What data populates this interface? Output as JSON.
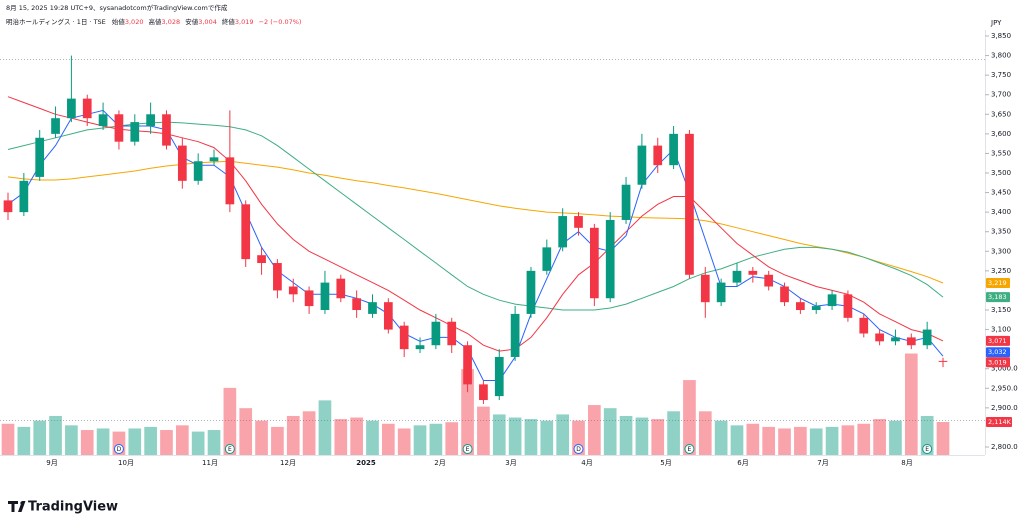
{
  "chart_data": {
    "type": "candlestick",
    "header": {
      "created": "8月 15, 2025 19:28 UTC+9、sysanadotcomがTradingView.comで作成",
      "symbol": "明治ホールディングス · 1日 · TSE",
      "open_label": "始値",
      "open": "3,020",
      "high_label": "高値",
      "high": "3,028",
      "low_label": "安値",
      "low": "3,004",
      "close_label": "終値",
      "close": "3,019",
      "change": "−2 (−0.07%)"
    },
    "currency": "JPY",
    "logo": "TradingView",
    "months": [
      "9月",
      "10月",
      "11月",
      "12月",
      "2025",
      "2月",
      "3月",
      "4月",
      "5月",
      "6月",
      "7月",
      "8月"
    ],
    "ylim": [
      2800,
      3850
    ],
    "yticks": [
      {
        "value": 3850,
        "label": "3,850"
      },
      {
        "value": 3800,
        "label": "3,800"
      },
      {
        "value": 3750,
        "label": "3,750"
      },
      {
        "value": 3700,
        "label": "3,700"
      },
      {
        "value": 3650,
        "label": "3,650"
      },
      {
        "value": 3600,
        "label": "3,600"
      },
      {
        "value": 3550,
        "label": "3,550"
      },
      {
        "value": 3500,
        "label": "3,500"
      },
      {
        "value": 3450,
        "label": "3,450"
      },
      {
        "value": 3400,
        "label": "3,400"
      },
      {
        "value": 3350,
        "label": "3,350"
      },
      {
        "value": 3300,
        "label": "3,300"
      },
      {
        "value": 3250,
        "label": "3,250"
      },
      {
        "value": 3150,
        "label": "3,150"
      },
      {
        "value": 3100,
        "label": "3,100"
      },
      {
        "value": 3000,
        "label": "3,000.0"
      },
      {
        "value": 2950,
        "label": "2,950.0"
      },
      {
        "value": 2900,
        "label": "2,900.0"
      },
      {
        "value": 2800,
        "label": "2,800.0"
      }
    ],
    "up_color": "#089981",
    "down_color": "#f23645",
    "open": [
      3430,
      3400,
      3490,
      3600,
      3640,
      3690,
      3620,
      3650,
      3580,
      3620,
      3650,
      3570,
      3480,
      3530,
      3540,
      3420,
      3290,
      3270,
      3210,
      3200,
      3150,
      3230,
      3180,
      3140,
      3170,
      3110,
      3050,
      3060,
      3120,
      3060,
      2960,
      2930,
      3030,
      3140,
      3250,
      3310,
      3390,
      3360,
      3180,
      3380,
      3470,
      3570,
      3520,
      3600,
      3240,
      3170,
      3220,
      3250,
      3240,
      3210,
      3170,
      3150,
      3160,
      3190,
      3130,
      3090,
      3070,
      3080,
      3060,
      3020
    ],
    "high": [
      3450,
      3500,
      3610,
      3670,
      3800,
      3700,
      3680,
      3660,
      3650,
      3680,
      3660,
      3590,
      3550,
      3560,
      3660,
      3430,
      3310,
      3280,
      3230,
      3210,
      3250,
      3240,
      3200,
      3190,
      3180,
      3120,
      3080,
      3140,
      3130,
      3070,
      2970,
      3050,
      3160,
      3260,
      3330,
      3410,
      3400,
      3370,
      3400,
      3490,
      3600,
      3590,
      3620,
      3610,
      3260,
      3230,
      3270,
      3260,
      3250,
      3220,
      3180,
      3170,
      3200,
      3200,
      3140,
      3100,
      3100,
      3090,
      3120,
      3028
    ],
    "low": [
      3380,
      3390,
      3480,
      3590,
      3630,
      3620,
      3610,
      3560,
      3570,
      3600,
      3560,
      3460,
      3470,
      3520,
      3400,
      3260,
      3240,
      3180,
      3170,
      3140,
      3140,
      3170,
      3130,
      3130,
      3090,
      3030,
      3040,
      3050,
      3040,
      2940,
      2910,
      2920,
      3020,
      3130,
      3240,
      3300,
      3340,
      3160,
      3170,
      3370,
      3460,
      3500,
      3510,
      3230,
      3130,
      3160,
      3210,
      3220,
      3200,
      3160,
      3140,
      3140,
      3150,
      3120,
      3080,
      3060,
      3060,
      3050,
      3050,
      3004
    ],
    "close": [
      3400,
      3480,
      3590,
      3640,
      3690,
      3640,
      3650,
      3580,
      3630,
      3650,
      3570,
      3480,
      3530,
      3540,
      3420,
      3280,
      3270,
      3200,
      3190,
      3160,
      3220,
      3180,
      3150,
      3170,
      3100,
      3050,
      3060,
      3120,
      3060,
      2960,
      2920,
      3030,
      3140,
      3250,
      3310,
      3390,
      3360,
      3180,
      3380,
      3470,
      3570,
      3520,
      3600,
      3240,
      3170,
      3220,
      3250,
      3240,
      3210,
      3170,
      3150,
      3160,
      3190,
      3130,
      3090,
      3070,
      3080,
      3060,
      3100,
      3019
    ],
    "last_close_label": "3,019",
    "volume": [
      2000,
      1800,
      2200,
      2500,
      1900,
      1600,
      1700,
      1500,
      1700,
      1800,
      1600,
      1900,
      1500,
      1600,
      4300,
      3000,
      2200,
      1800,
      2500,
      2800,
      3500,
      2300,
      2400,
      2200,
      2000,
      1700,
      1900,
      2000,
      2100,
      5500,
      3100,
      2600,
      2400,
      2300,
      2200,
      2600,
      2200,
      3200,
      3000,
      2500,
      2400,
      2300,
      2800,
      4800,
      2800,
      2200,
      1900,
      2000,
      1800,
      1700,
      1800,
      1700,
      1800,
      1900,
      2000,
      2300,
      2200,
      6500,
      2500,
      2114
    ],
    "last_volume_label": "2,114K",
    "series": [
      {
        "color": "#f7a600",
        "last_label": "3,219",
        "values": [
          3490,
          3485,
          3482,
          3482,
          3485,
          3490,
          3495,
          3500,
          3505,
          3512,
          3518,
          3522,
          3526,
          3528,
          3530,
          3525,
          3520,
          3515,
          3508,
          3500,
          3494,
          3487,
          3480,
          3475,
          3468,
          3462,
          3455,
          3448,
          3440,
          3432,
          3424,
          3416,
          3410,
          3405,
          3400,
          3398,
          3396,
          3393,
          3390,
          3388,
          3386,
          3385,
          3384,
          3383,
          3378,
          3370,
          3360,
          3350,
          3340,
          3330,
          3320,
          3312,
          3305,
          3295,
          3285,
          3272,
          3260,
          3248,
          3235,
          3219
        ]
      },
      {
        "color": "#3fae82",
        "last_label": "3,183",
        "values": [
          3560,
          3570,
          3580,
          3590,
          3600,
          3610,
          3615,
          3620,
          3625,
          3628,
          3630,
          3628,
          3625,
          3622,
          3618,
          3610,
          3595,
          3570,
          3540,
          3510,
          3480,
          3450,
          3420,
          3390,
          3360,
          3330,
          3300,
          3270,
          3240,
          3210,
          3190,
          3175,
          3165,
          3160,
          3155,
          3150,
          3150,
          3150,
          3155,
          3165,
          3180,
          3195,
          3210,
          3230,
          3245,
          3255,
          3270,
          3285,
          3295,
          3305,
          3310,
          3310,
          3305,
          3298,
          3285,
          3270,
          3255,
          3238,
          3215,
          3183
        ]
      },
      {
        "color": "#f23645",
        "last_label": "3,071",
        "values": [
          3695,
          3680,
          3665,
          3650,
          3640,
          3630,
          3620,
          3612,
          3608,
          3605,
          3600,
          3590,
          3580,
          3565,
          3530,
          3480,
          3420,
          3370,
          3330,
          3300,
          3280,
          3260,
          3240,
          3220,
          3200,
          3175,
          3150,
          3130,
          3110,
          3090,
          3060,
          3045,
          3050,
          3080,
          3130,
          3190,
          3240,
          3270,
          3310,
          3350,
          3390,
          3420,
          3440,
          3440,
          3400,
          3360,
          3320,
          3290,
          3260,
          3240,
          3225,
          3210,
          3200,
          3190,
          3170,
          3140,
          3120,
          3100,
          3090,
          3071
        ]
      },
      {
        "color": "#2962ff",
        "last_label": "3,032",
        "values": [
          3420,
          3450,
          3520,
          3570,
          3640,
          3650,
          3660,
          3620,
          3620,
          3620,
          3610,
          3540,
          3520,
          3520,
          3490,
          3400,
          3310,
          3250,
          3220,
          3190,
          3190,
          3190,
          3180,
          3165,
          3140,
          3090,
          3070,
          3080,
          3080,
          3050,
          2970,
          2970,
          3030,
          3140,
          3230,
          3320,
          3350,
          3310,
          3300,
          3340,
          3470,
          3520,
          3560,
          3450,
          3330,
          3210,
          3210,
          3235,
          3230,
          3210,
          3180,
          3160,
          3165,
          3160,
          3140,
          3100,
          3080,
          3070,
          3080,
          3032
        ]
      }
    ],
    "events": [
      "D",
      "E",
      "E",
      "D",
      "E",
      "E"
    ]
  }
}
